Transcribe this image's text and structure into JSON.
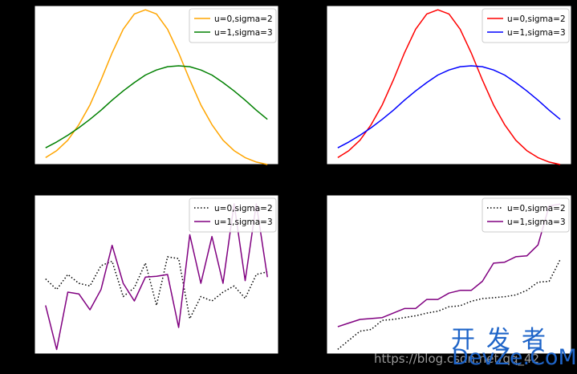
{
  "chart_data": [
    {
      "type": "line",
      "xlim": [
        -11,
        11
      ],
      "ylim": [
        0.015,
        0.205
      ],
      "x": [
        -10,
        -9,
        -8,
        -7,
        -6,
        -5,
        -4,
        -3,
        -2,
        -1,
        0,
        1,
        2,
        3,
        4,
        5,
        6,
        7,
        8,
        9,
        10
      ],
      "legend": "top-right",
      "series": [
        {
          "name": "u=0,sigma=2",
          "color": "#ffa500",
          "style": "solid",
          "values": [
            0.0233,
            0.0316,
            0.0441,
            0.0627,
            0.0863,
            0.1161,
            0.1485,
            0.1768,
            0.195,
            0.2,
            0.195,
            0.1768,
            0.1485,
            0.1161,
            0.0863,
            0.0627,
            0.0441,
            0.0316,
            0.0233,
            0.018,
            0.015
          ]
        },
        {
          "name": "u=1,sigma=3",
          "color": "#008000",
          "style": "solid",
          "values": [
            0.035,
            0.042,
            0.05,
            0.059,
            0.069,
            0.08,
            0.092,
            0.103,
            0.113,
            0.122,
            0.128,
            0.132,
            0.133,
            0.132,
            0.128,
            0.122,
            0.113,
            0.103,
            0.092,
            0.08,
            0.069
          ]
        }
      ]
    },
    {
      "type": "line",
      "xlim": [
        -11,
        11
      ],
      "ylim": [
        0.015,
        0.205
      ],
      "x": [
        -10,
        -9,
        -8,
        -7,
        -6,
        -5,
        -4,
        -3,
        -2,
        -1,
        0,
        1,
        2,
        3,
        4,
        5,
        6,
        7,
        8,
        9,
        10
      ],
      "legend": "top-right",
      "series": [
        {
          "name": "u=0,sigma=2",
          "color": "#ff0000",
          "style": "solid",
          "values": [
            0.0233,
            0.0316,
            0.0441,
            0.0627,
            0.0863,
            0.1161,
            0.1485,
            0.1768,
            0.195,
            0.2,
            0.195,
            0.1768,
            0.1485,
            0.1161,
            0.0863,
            0.0627,
            0.0441,
            0.0316,
            0.0233,
            0.018,
            0.015
          ]
        },
        {
          "name": "u=1,sigma=3",
          "color": "#0000ff",
          "style": "solid",
          "values": [
            0.035,
            0.042,
            0.05,
            0.059,
            0.069,
            0.08,
            0.092,
            0.103,
            0.113,
            0.122,
            0.128,
            0.132,
            0.133,
            0.132,
            0.128,
            0.122,
            0.113,
            0.103,
            0.092,
            0.08,
            0.069
          ]
        }
      ]
    },
    {
      "type": "line",
      "xlim": [
        -1,
        21
      ],
      "ylim": [
        -6.5,
        11.5
      ],
      "x": [
        0,
        1,
        2,
        3,
        4,
        5,
        6,
        7,
        8,
        9,
        10,
        11,
        12,
        13,
        14,
        15,
        16,
        17,
        18,
        19,
        20
      ],
      "legend": "top-right",
      "series": [
        {
          "name": "u=0,sigma=2",
          "color": "#000000",
          "style": "dotted",
          "values": [
            2.0,
            0.8,
            2.5,
            1.5,
            1.2,
            3.5,
            4.0,
            0.0,
            1.0,
            3.8,
            -1.0,
            4.5,
            4.3,
            -2.5,
            0.0,
            -0.5,
            0.5,
            1.2,
            -0.2,
            2.5,
            2.8
          ]
        },
        {
          "name": "u=1,sigma=3",
          "color": "#800080",
          "style": "solid",
          "values": [
            -1.0,
            -6.0,
            0.5,
            0.3,
            -1.5,
            0.8,
            5.8,
            1.5,
            -0.5,
            2.2,
            2.3,
            2.5,
            -3.5,
            7.0,
            1.5,
            6.8,
            1.5,
            10.5,
            1.8,
            10.5,
            2.2
          ]
        }
      ]
    },
    {
      "type": "line",
      "xlim": [
        -1,
        21
      ],
      "ylim": [
        -5.5,
        12
      ],
      "x": [
        0,
        1,
        2,
        3,
        4,
        5,
        6,
        7,
        8,
        9,
        10,
        11,
        12,
        13,
        14,
        15,
        16,
        17,
        18,
        19,
        20
      ],
      "legend": "top-right",
      "series": [
        {
          "name": "u=0,sigma=2",
          "color": "#000000",
          "style": "dotted",
          "values": [
            -5.0,
            -4.0,
            -3.0,
            -2.8,
            -1.8,
            -1.7,
            -1.5,
            -1.3,
            -1.0,
            -0.8,
            -0.3,
            -0.2,
            0.3,
            0.6,
            0.7,
            0.8,
            1.0,
            1.5,
            2.4,
            2.5,
            4.9
          ]
        },
        {
          "name": "u=1,sigma=3",
          "color": "#800080",
          "style": "solid",
          "values": [
            -2.5,
            -2.1,
            -1.7,
            -1.6,
            -1.5,
            -1.0,
            -0.5,
            -0.5,
            0.5,
            0.5,
            1.2,
            1.5,
            1.5,
            2.5,
            4.5,
            4.6,
            5.2,
            5.3,
            6.5,
            10.8,
            11.0
          ]
        }
      ]
    }
  ],
  "watermark": {
    "cn": "开发者",
    "url": "https://blog.csdn.net/qq_42",
    "en": "DevZe.CoM"
  }
}
